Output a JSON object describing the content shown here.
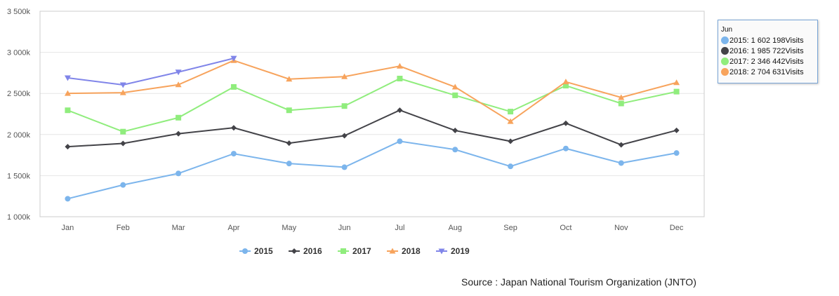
{
  "chart_data": {
    "type": "line",
    "categories": [
      "Jan",
      "Feb",
      "Mar",
      "Apr",
      "May",
      "Jun",
      "Jul",
      "Aug",
      "Sep",
      "Oct",
      "Nov",
      "Dec"
    ],
    "y_tick_labels": [
      "1 000k",
      "1 500k",
      "2 000k",
      "2 500k",
      "3 000k",
      "3 500k"
    ],
    "y_ticks": [
      1000000,
      1500000,
      2000000,
      2500000,
      3000000,
      3500000
    ],
    "ylim": [
      1000000,
      3500000
    ],
    "legend_position": "bottom",
    "grid": true,
    "series": [
      {
        "name": "2015",
        "color": "#7cb5ec",
        "marker": "circle",
        "values": [
          1219000,
          1387000,
          1527000,
          1767000,
          1647000,
          1602198,
          1918000,
          1817000,
          1613000,
          1830000,
          1653000,
          1775000
        ]
      },
      {
        "name": "2016",
        "color": "#434348",
        "marker": "diamond",
        "values": [
          1852000,
          1892000,
          2010000,
          2082000,
          1895000,
          1985722,
          2296000,
          2049000,
          1918000,
          2137000,
          1875000,
          2051000
        ]
      },
      {
        "name": "2017",
        "color": "#90ed7d",
        "marker": "square",
        "values": [
          2295000,
          2035000,
          2205000,
          2579000,
          2295000,
          2346442,
          2681000,
          2477000,
          2279000,
          2595000,
          2378000,
          2522000
        ]
      },
      {
        "name": "2018",
        "color": "#f7a35c",
        "marker": "triangle",
        "values": [
          2501000,
          2509000,
          2606000,
          2901000,
          2675000,
          2704631,
          2832000,
          2578000,
          2159000,
          2641000,
          2451000,
          2632000
        ]
      },
      {
        "name": "2019",
        "color": "#8085e9",
        "marker": "triangle-down",
        "values": [
          2689000,
          2604000,
          2760000,
          2927000,
          null,
          null,
          null,
          null,
          null,
          null,
          null,
          null
        ]
      }
    ]
  },
  "tooltip": {
    "header": "Jun",
    "rows": [
      {
        "text": "2015: 1 602 198Visits",
        "color": "#7cb5ec"
      },
      {
        "text": "2016: 1 985 722Visits",
        "color": "#434348"
      },
      {
        "text": "2017: 2 346 442Visits",
        "color": "#90ed7d"
      },
      {
        "text": "2018: 2 704 631Visits",
        "color": "#f7a35c"
      }
    ]
  },
  "source": "Source : Japan National Tourism Organization (JNTO)"
}
